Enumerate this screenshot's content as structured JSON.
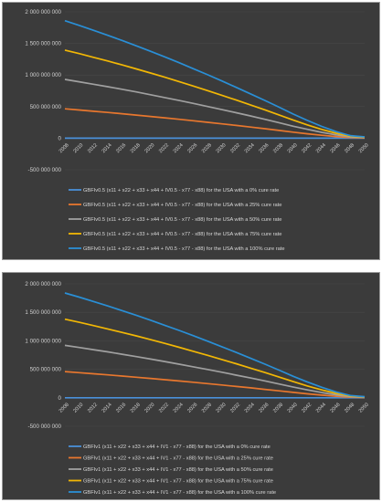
{
  "charts": [
    {
      "y_ticks": [
        "2 000 000 000",
        "1 500 000 000",
        "1 000 000 000",
        "500 000 000",
        "0",
        "-500 000 000"
      ],
      "x_ticks": [
        "2008",
        "2010",
        "2012",
        "2014",
        "2016",
        "2018",
        "2020",
        "2022",
        "2024",
        "2026",
        "2028",
        "2030",
        "2032",
        "2034",
        "2036",
        "2038",
        "2040",
        "2042",
        "2044",
        "2046",
        "2048",
        "2050"
      ]
    },
    {
      "y_ticks": [
        "2 000 000 000",
        "1 500 000 000",
        "1 000 000 000",
        "500 000 000",
        "0",
        "-500 000 000"
      ],
      "x_ticks": [
        "2008",
        "2010",
        "2012",
        "2014",
        "2016",
        "2018",
        "2020",
        "2022",
        "2024",
        "2026",
        "2028",
        "2030",
        "2032",
        "2034",
        "2036",
        "2038",
        "2040",
        "2042",
        "2044",
        "2046",
        "2048",
        "2050"
      ]
    }
  ],
  "chart_data": [
    {
      "type": "line",
      "x": [
        2008,
        2010,
        2012,
        2014,
        2016,
        2018,
        2020,
        2022,
        2024,
        2026,
        2028,
        2030,
        2032,
        2034,
        2036,
        2038,
        2040,
        2042,
        2044,
        2046,
        2048,
        2050
      ],
      "ylim": [
        -500000000,
        2000000000
      ],
      "series": [
        {
          "name": "GBFIv0.5 (x11 + x22 + x33 + x44 + IV0.5 - x77 - x88) for the USA with a 0% cure rate",
          "color": "#4a90d9",
          "values": [
            0,
            0,
            0,
            0,
            0,
            0,
            0,
            0,
            0,
            0,
            0,
            0,
            0,
            0,
            0,
            0,
            0,
            0,
            0,
            0,
            0,
            0
          ]
        },
        {
          "name": "GBFIv0.5 (x11 + x22 + x33 + x44 + IV0.5 - x77 - x88) for the USA with a 25% cure rate",
          "color": "#e8772e",
          "values": [
            465000000,
            446000000,
            427000000,
            407000000,
            387000000,
            366000000,
            344000000,
            322000000,
            299000000,
            276000000,
            252000000,
            227000000,
            202000000,
            176000000,
            150000000,
            123000000,
            95000000,
            70000000,
            46000000,
            26000000,
            10000000,
            5000000
          ]
        },
        {
          "name": "GBFIv0.5 (x11 + x22 + x33 + x44 + IV0.5 - x77 - x88) for the USA with a 50% cure rate",
          "color": "#a0a0a0",
          "values": [
            930000000,
            893000000,
            854000000,
            815000000,
            774000000,
            732000000,
            688000000,
            643000000,
            597000000,
            550000000,
            502000000,
            453000000,
            403000000,
            352000000,
            299000000,
            245000000,
            190000000,
            140000000,
            93000000,
            52000000,
            20000000,
            10000000
          ]
        },
        {
          "name": "GBFIv0.5 (x11 + x22 + x33 + x44 + IV0.5 - x77 - x88) for the USA with a 75% cure rate",
          "color": "#f2b705",
          "values": [
            1395000000,
            1339000000,
            1281000000,
            1222000000,
            1161000000,
            1097000000,
            1032000000,
            965000000,
            896000000,
            825000000,
            753000000,
            679000000,
            604000000,
            527000000,
            449000000,
            368000000,
            286000000,
            210000000,
            139000000,
            78000000,
            30000000,
            15000000
          ]
        },
        {
          "name": "GBFIv0.5 (x11 + x22 + x33 + x44 + IV0.5 - x77 - x88) for the USA with a 100% cure rate",
          "color": "#2a8fd6",
          "values": [
            1860000000,
            1786000000,
            1708000000,
            1629000000,
            1547000000,
            1463000000,
            1376000000,
            1287000000,
            1195000000,
            1100000000,
            1004000000,
            906000000,
            805000000,
            703000000,
            598000000,
            491000000,
            381000000,
            280000000,
            186000000,
            104000000,
            40000000,
            20000000
          ]
        }
      ]
    },
    {
      "type": "line",
      "x": [
        2008,
        2010,
        2012,
        2014,
        2016,
        2018,
        2020,
        2022,
        2024,
        2026,
        2028,
        2030,
        2032,
        2034,
        2036,
        2038,
        2040,
        2042,
        2044,
        2046,
        2048,
        2050
      ],
      "ylim": [
        -500000000,
        2000000000
      ],
      "series": [
        {
          "name": "GBFIv1 (x11 + x22 + x33 + x44 + IV1 - x77 - x88) for the USA with a 0% cure rate",
          "color": "#4a90d9",
          "values": [
            0,
            0,
            0,
            0,
            0,
            0,
            0,
            0,
            0,
            0,
            0,
            0,
            0,
            0,
            0,
            0,
            0,
            0,
            0,
            0,
            0,
            0
          ]
        },
        {
          "name": "GBFIv1 (x11 + x22 + x33 + x44 + IV1 - x77 - x88) for the USA with a 25% cure rate",
          "color": "#e8772e",
          "values": [
            460000000,
            441000000,
            422000000,
            402000000,
            382000000,
            361000000,
            340000000,
            318000000,
            295000000,
            272000000,
            248000000,
            224000000,
            199000000,
            174000000,
            148000000,
            121000000,
            94000000,
            69000000,
            46000000,
            26000000,
            10000000,
            5000000
          ]
        },
        {
          "name": "GBFIv1 (x11 + x22 + x33 + x44 + IV1 - x77 - x88) for the USA with a 50% cure rate",
          "color": "#a0a0a0",
          "values": [
            920000000,
            883000000,
            845000000,
            806000000,
            765000000,
            723000000,
            680000000,
            636000000,
            590000000,
            544000000,
            496000000,
            448000000,
            398000000,
            347000000,
            296000000,
            242000000,
            188000000,
            138000000,
            92000000,
            51000000,
            20000000,
            10000000
          ]
        },
        {
          "name": "GBFIv1 (x11 + x22 + x33 + x44 + IV1 - x77 - x88) for the USA with a 75% cure rate",
          "color": "#f2b705",
          "values": [
            1380000000,
            1325000000,
            1268000000,
            1209000000,
            1148000000,
            1086000000,
            1021000000,
            955000000,
            886000000,
            816000000,
            745000000,
            672000000,
            597000000,
            521000000,
            444000000,
            364000000,
            283000000,
            207000000,
            138000000,
            77000000,
            30000000,
            15000000
          ]
        },
        {
          "name": "GBFIv1 (x11 + x22 + x33 + x44 + IV1 - x77 - x88) for the USA with a 100% cure rate",
          "color": "#2a8fd6",
          "values": [
            1840000000,
            1767000000,
            1690000000,
            1612000000,
            1531000000,
            1448000000,
            1362000000,
            1273000000,
            1182000000,
            1089000000,
            993000000,
            896000000,
            796000000,
            695000000,
            592000000,
            486000000,
            377000000,
            276000000,
            184000000,
            103000000,
            40000000,
            20000000
          ]
        }
      ]
    }
  ]
}
